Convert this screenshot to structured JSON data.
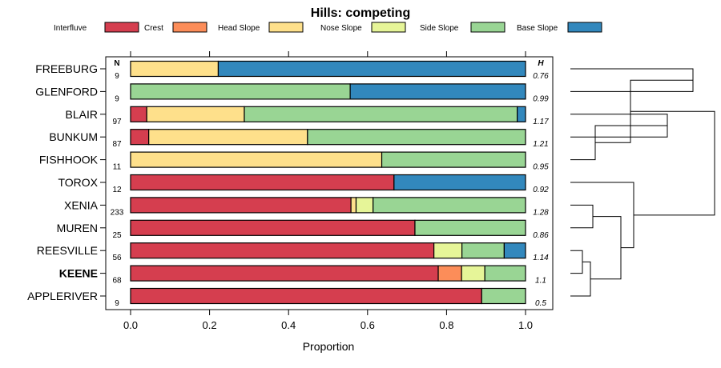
{
  "chart_data": {
    "type": "bar",
    "orientation": "horizontal",
    "stacked": true,
    "title": "Hills: competing",
    "xlabel": "Proportion",
    "ylabel": "",
    "xlim": [
      0,
      1
    ],
    "xticks": [
      "0.0",
      "0.2",
      "0.4",
      "0.6",
      "0.8",
      "1.0"
    ],
    "legend": {
      "position": "top",
      "entries": [
        {
          "name": "Interfluve",
          "color": "#D53E4F"
        },
        {
          "name": "Crest",
          "color": "#FC8D59"
        },
        {
          "name": "Head Slope",
          "color": "#FEE08B"
        },
        {
          "name": "Nose Slope",
          "color": "#E6F598"
        },
        {
          "name": "Side Slope",
          "color": "#99D594"
        },
        {
          "name": "Base Slope",
          "color": "#3288BD"
        }
      ]
    },
    "n_header": "N",
    "h_header": "H",
    "bold_category": "KEENE",
    "rows": [
      {
        "name": "FREEBURG",
        "n": "9",
        "h": "0.76",
        "values": [
          0,
          0,
          0.222,
          0,
          0,
          0.778
        ]
      },
      {
        "name": "GLENFORD",
        "n": "9",
        "h": "0.99",
        "values": [
          0,
          0,
          0,
          0,
          0.556,
          0.444
        ]
      },
      {
        "name": "BLAIR",
        "n": "97",
        "h": "1.17",
        "values": [
          0.041,
          0,
          0.247,
          0,
          0.691,
          0.021
        ]
      },
      {
        "name": "BUNKUM",
        "n": "87",
        "h": "1.21",
        "values": [
          0.046,
          0,
          0.402,
          0,
          0.552,
          0
        ]
      },
      {
        "name": "FISHHOOK",
        "n": "11",
        "h": "0.95",
        "values": [
          0,
          0,
          0.636,
          0,
          0.364,
          0
        ]
      },
      {
        "name": "TOROX",
        "n": "12",
        "h": "0.92",
        "values": [
          0.667,
          0,
          0,
          0,
          0,
          0.333
        ]
      },
      {
        "name": "XENIA",
        "n": "233",
        "h": "1.28",
        "values": [
          0.558,
          0,
          0.013,
          0.043,
          0.386,
          0
        ]
      },
      {
        "name": "MUREN",
        "n": "25",
        "h": "0.86",
        "values": [
          0.72,
          0,
          0,
          0,
          0.28,
          0
        ]
      },
      {
        "name": "REESVILLE",
        "n": "56",
        "h": "1.14",
        "values": [
          0.768,
          0,
          0,
          0.071,
          0.107,
          0.054
        ]
      },
      {
        "name": "KEENE",
        "n": "68",
        "h": "1.1",
        "values": [
          0.779,
          0.059,
          0,
          0.059,
          0.103,
          0
        ]
      },
      {
        "name": "APPLERIVER",
        "n": "9",
        "h": "0.5",
        "values": [
          0.889,
          0,
          0,
          0,
          0.111,
          0
        ]
      }
    ],
    "dendrogram": {
      "merges": [
        [
          "FREEBURG",
          "GLENFORD"
        ],
        [
          "BLAIR",
          "BUNKUM"
        ],
        [
          "cluster:BLAIR+BUNKUM",
          "FISHHOOK"
        ],
        [
          "cluster:FREEBURG+GLENFORD",
          "cluster:BLAIR+BUNKUM+FISHHOOK"
        ],
        [
          "REESVILLE",
          "KEENE"
        ],
        [
          "cluster:REESVILLE+KEENE",
          "APPLERIVER"
        ],
        [
          "XENIA",
          "MUREN"
        ],
        [
          "cluster:XENIA+MUREN",
          "cluster:REESVILLE+KEENE+APPLERIVER"
        ],
        [
          "TOROX",
          "cluster:XENIA+MUREN+REESVILLE+KEENE+APPLERIVER"
        ],
        [
          "cluster:FREEBURG+GLENFORD+BLAIR+BUNKUM+FISHHOOK",
          "cluster:TOROX+XENIA+MUREN+REESVILLE+KEENE+APPLERIVER"
        ]
      ]
    }
  }
}
